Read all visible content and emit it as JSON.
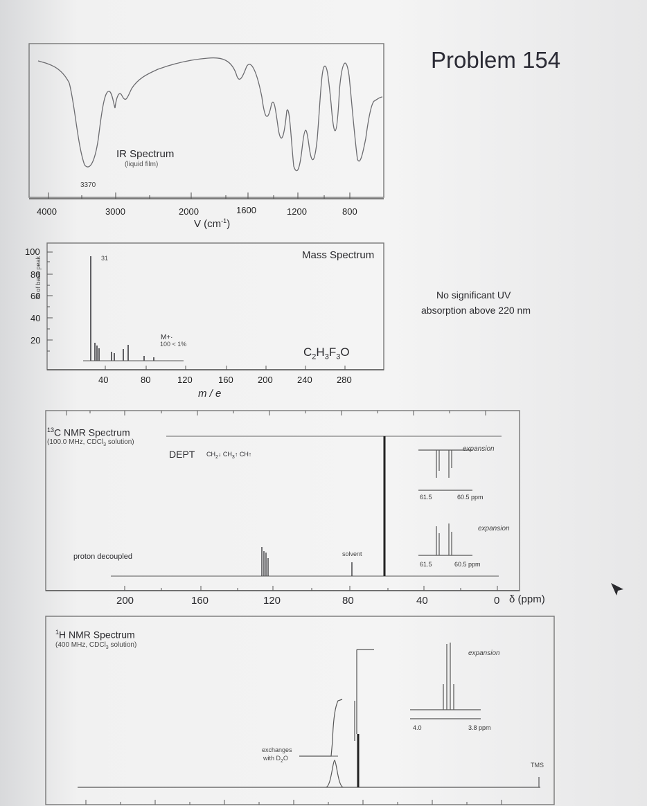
{
  "problem_title": "Problem 154",
  "ir": {
    "title": "IR Spectrum",
    "subtitle": "(liquid film)",
    "peak_label": "3370",
    "xticks": [
      "4000",
      "3000",
      "2000",
      "1600",
      "1200",
      "800"
    ],
    "xlabel": "V (cm",
    "xlabel_sup": "-1",
    "xlabel_close": ")"
  },
  "mass": {
    "title": "Mass Spectrum",
    "ylabel": "% of base peak",
    "yticks": [
      "100",
      "80",
      "60",
      "40",
      "20"
    ],
    "xticks": [
      "40",
      "80",
      "120",
      "160",
      "200",
      "240",
      "280"
    ],
    "xlabel": "m / e",
    "base_peak_label": "31",
    "molecular_ion": "M+·",
    "molecular_ion_note": "100 < 1%",
    "formula": "C2H3F3O"
  },
  "uv_note": {
    "line1": "No significant UV",
    "line2": "absorption above 220 nm"
  },
  "c13": {
    "title": "13C NMR Spectrum",
    "subtitle": "(100.0 MHz, CDCl3 solution)",
    "dept": "DEPT",
    "dept_ch2": "CH2",
    "dept_ch3": "CH3",
    "dept_ch": "CH",
    "proton_decoupled": "proton decoupled",
    "solvent": "solvent",
    "expansion1": "expansion",
    "expansion2": "expansion",
    "exp_ticks1": [
      "61.5",
      "60.5 ppm"
    ],
    "exp_ticks2": [
      "61.5",
      "60.5 ppm"
    ],
    "xticks": [
      "200",
      "160",
      "120",
      "80",
      "40",
      "0"
    ],
    "xunit": "δ (ppm)"
  },
  "h1": {
    "title": "1H NMR Spectrum",
    "subtitle": "(400 MHz, CDCl3 solution)",
    "expansion": "expansion",
    "exp_ticks": [
      "4.0",
      "3.8 ppm"
    ],
    "exchanges_line1": "exchanges",
    "exchanges_line2": "with D2O",
    "tms": "TMS"
  }
}
